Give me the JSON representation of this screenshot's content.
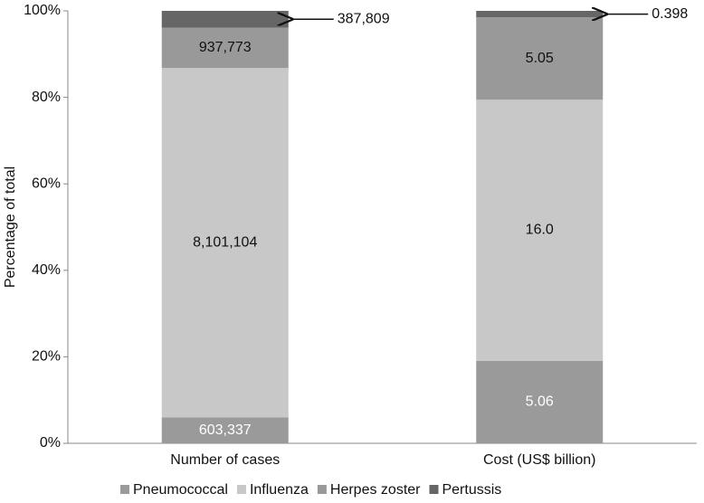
{
  "chart_data": {
    "type": "bar",
    "stacking": "percent",
    "y_label": "Percentage of total",
    "categories": [
      "Number of cases",
      "Cost (US$ billion)"
    ],
    "series": [
      {
        "name": "Pneumococcal",
        "color": "#9a9a9a",
        "values": [
          603337,
          5.06
        ],
        "value_labels": [
          "603,337",
          "5.06"
        ]
      },
      {
        "name": "Influenza",
        "color": "#c8c8c8",
        "values": [
          8101104,
          16.0
        ],
        "value_labels": [
          "8,101,104",
          "16.0"
        ]
      },
      {
        "name": "Herpes zoster",
        "color": "#999999",
        "values": [
          937773,
          5.05
        ],
        "value_labels": [
          "937,773",
          "5.05"
        ]
      },
      {
        "name": "Pertussis",
        "color": "#666666",
        "values": [
          387809,
          0.398
        ],
        "value_labels": [
          "387,809",
          "0.398"
        ]
      }
    ],
    "ylim": [
      0,
      100
    ],
    "yticks": [
      {
        "value": 0,
        "label": "0%"
      },
      {
        "value": 20,
        "label": "20%"
      },
      {
        "value": 40,
        "label": "40%"
      },
      {
        "value": 60,
        "label": "60%"
      },
      {
        "value": 80,
        "label": "80%"
      },
      {
        "value": 100,
        "label": "100%"
      }
    ]
  }
}
